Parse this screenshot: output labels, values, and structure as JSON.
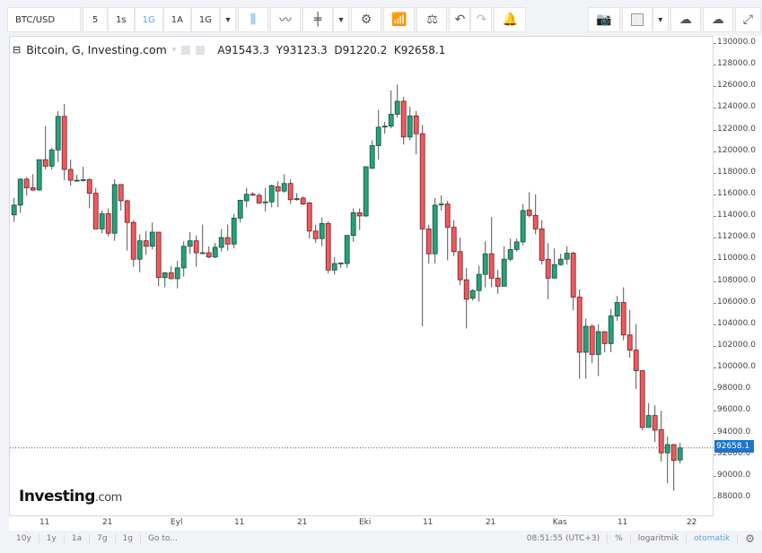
{
  "toolbar": {
    "symbol": "BTC/USD",
    "intervals": [
      {
        "label": "5",
        "active": false
      },
      {
        "label": "1s",
        "active": false
      },
      {
        "label": "1G",
        "active": true
      },
      {
        "label": "1A",
        "active": false
      },
      {
        "label": "1G",
        "active": false
      }
    ],
    "icons": [
      "candlestick-icon",
      "line-chart-icon",
      "bar-style-icon",
      "gear-icon",
      "indicators-icon",
      "compare-icon",
      "undo-icon",
      "redo-icon",
      "add-alert-icon",
      "camera-icon",
      "color-square-icon",
      "cloud-download-icon",
      "cloud-upload-icon",
      "fullscreen-icon"
    ]
  },
  "legend": {
    "title": "Bitcoin, G, Investing.com",
    "ohlc": "A91543.3  Y93123.3  D91220.2  K92658.1"
  },
  "logo": {
    "main": "Investing",
    "suffix": ".com"
  },
  "price_tag": "92658.1",
  "bottom": {
    "ranges": [
      "10y",
      "1y",
      "1a",
      "7g",
      "1g"
    ],
    "goto": "Go to...",
    "time": "08:51:55 (UTC+3)",
    "percent": "%",
    "log": "logaritmik",
    "auto": "otomatik"
  },
  "colors": {
    "up": "#26a17b",
    "down": "#ef5a5f",
    "price_line": "#1f76c6"
  },
  "chart_data": {
    "type": "candlestick",
    "title": "Bitcoin, G, Investing.com",
    "ylim": [
      87000,
      131000
    ],
    "yticks": [
      "130000.0",
      "128000.0",
      "126000.0",
      "124000.0",
      "122000.0",
      "120000.0",
      "118000.0",
      "116000.0",
      "114000.0",
      "112000.0",
      "110000.0",
      "108000.0",
      "106000.0",
      "104000.0",
      "102000.0",
      "100000.0",
      "98000.0",
      "96000.0",
      "94000.0",
      "92000.0",
      "90000.0",
      "88000.0"
    ],
    "xticks": [
      {
        "label": "11",
        "date": "08-11"
      },
      {
        "label": "21",
        "date": "08-21"
      },
      {
        "label": "Eyl",
        "date": "09-01"
      },
      {
        "label": "11",
        "date": "09-11"
      },
      {
        "label": "21",
        "date": "09-21"
      },
      {
        "label": "Eki",
        "date": "10-01"
      },
      {
        "label": "11",
        "date": "10-11"
      },
      {
        "label": "21",
        "date": "10-21"
      },
      {
        "label": "Kas",
        "date": "11-01"
      },
      {
        "label": "11",
        "date": "11-11"
      },
      {
        "label": "22",
        "date": "11-22"
      }
    ],
    "last_price": 92658.1,
    "columns": [
      "date",
      "open",
      "high",
      "low",
      "close"
    ],
    "candles": [
      [
        "08-06",
        114200,
        115750,
        113540,
        115100
      ],
      [
        "08-07",
        115100,
        117600,
        114400,
        117500
      ],
      [
        "08-08",
        117500,
        117700,
        116000,
        116700
      ],
      [
        "08-09",
        116700,
        117960,
        116400,
        116500
      ],
      [
        "08-10",
        116500,
        119300,
        116400,
        119300
      ],
      [
        "08-11",
        119300,
        122400,
        118400,
        118700
      ],
      [
        "08-12",
        118700,
        120400,
        118400,
        120200
      ],
      [
        "08-13",
        120200,
        123800,
        119100,
        123300
      ],
      [
        "08-14",
        123300,
        124450,
        117400,
        118400
      ],
      [
        "08-15",
        118400,
        119300,
        116900,
        117400
      ],
      [
        "08-16",
        117400,
        117900,
        117300,
        117400
      ],
      [
        "08-17",
        117400,
        118650,
        117300,
        117450
      ],
      [
        "08-18",
        117450,
        117600,
        114800,
        116200
      ],
      [
        "08-19",
        116200,
        116700,
        112900,
        112900
      ],
      [
        "08-20",
        112900,
        114600,
        112500,
        114300
      ],
      [
        "08-21",
        114300,
        114800,
        112200,
        112500
      ],
      [
        "08-22",
        112500,
        117500,
        111800,
        117000
      ],
      [
        "08-23",
        117000,
        117000,
        114600,
        115500
      ],
      [
        "08-24",
        115500,
        115600,
        110900,
        113500
      ],
      [
        "08-25",
        113500,
        113700,
        109400,
        110100
      ],
      [
        "08-26",
        110100,
        112400,
        108900,
        111800
      ],
      [
        "08-27",
        111800,
        112700,
        110500,
        111300
      ],
      [
        "08-28",
        111300,
        113500,
        111000,
        112600
      ],
      [
        "08-29",
        112600,
        112600,
        107600,
        108400
      ],
      [
        "08-30",
        108400,
        108900,
        107500,
        108850
      ],
      [
        "08-31",
        108850,
        109450,
        108250,
        108300
      ],
      [
        "09-01",
        108300,
        109950,
        107400,
        109300
      ],
      [
        "09-02",
        109300,
        111750,
        108500,
        111300
      ],
      [
        "09-03",
        111300,
        112600,
        110600,
        111800
      ],
      [
        "09-04",
        111800,
        112300,
        109400,
        110700
      ],
      [
        "09-05",
        110700,
        113300,
        110600,
        110700
      ],
      [
        "09-06",
        110700,
        111300,
        110200,
        110300
      ],
      [
        "09-07",
        110300,
        111600,
        110200,
        111200
      ],
      [
        "09-08",
        111200,
        112900,
        110800,
        112100
      ],
      [
        "09-09",
        112100,
        113300,
        110900,
        111500
      ],
      [
        "09-10",
        111500,
        114300,
        111100,
        113900
      ],
      [
        "09-11",
        113900,
        115550,
        113500,
        115550
      ],
      [
        "09-12",
        115500,
        116700,
        114900,
        116100
      ],
      [
        "09-13",
        116100,
        116300,
        115970,
        116050
      ],
      [
        "09-14",
        116000,
        116200,
        115200,
        115300
      ],
      [
        "09-15",
        115400,
        116700,
        114500,
        115400
      ],
      [
        "09-16",
        115400,
        117000,
        114900,
        116900
      ],
      [
        "09-17",
        116800,
        117300,
        114900,
        116400
      ],
      [
        "09-18",
        116400,
        117960,
        116250,
        117100
      ],
      [
        "09-19",
        117100,
        117500,
        115200,
        115600
      ],
      [
        "09-20",
        115700,
        116200,
        115500,
        115700
      ],
      [
        "09-21",
        115750,
        115900,
        115100,
        115200
      ],
      [
        "09-22",
        115300,
        115400,
        112000,
        112700
      ],
      [
        "09-23",
        112700,
        113300,
        111600,
        112000
      ],
      [
        "09-24",
        112000,
        113950,
        111300,
        113400
      ],
      [
        "09-25",
        113400,
        113600,
        108800,
        109100
      ],
      [
        "09-26",
        109100,
        110300,
        108700,
        109700
      ],
      [
        "09-27",
        109700,
        109800,
        109300,
        109750
      ],
      [
        "09-28",
        109700,
        112300,
        109300,
        112300
      ],
      [
        "09-29",
        112300,
        114800,
        111700,
        114400
      ],
      [
        "09-30",
        114400,
        114800,
        112800,
        114100
      ],
      [
        "10-01",
        114100,
        118700,
        114000,
        118650
      ],
      [
        "10-02",
        118500,
        121100,
        118500,
        120600
      ],
      [
        "10-03",
        120600,
        123900,
        119300,
        122300
      ],
      [
        "10-04",
        122350,
        122800,
        121700,
        122400
      ],
      [
        "10-05",
        122400,
        125700,
        122200,
        123500
      ],
      [
        "10-06",
        123500,
        126250,
        123200,
        124700
      ],
      [
        "10-07",
        124700,
        125100,
        120700,
        121400
      ],
      [
        "10-08",
        121400,
        124200,
        121100,
        123350
      ],
      [
        "10-09",
        123350,
        123800,
        119800,
        121700
      ],
      [
        "10-10",
        121700,
        122500,
        103900,
        112900
      ],
      [
        "10-11",
        112900,
        113300,
        109700,
        110600
      ],
      [
        "10-12",
        110600,
        115750,
        109700,
        115100
      ],
      [
        "10-13",
        115200,
        116000,
        114600,
        115200
      ],
      [
        "10-14",
        115200,
        115500,
        110000,
        113050
      ],
      [
        "10-15",
        113050,
        113700,
        110400,
        110800
      ],
      [
        "10-16",
        110800,
        112100,
        107700,
        108200
      ],
      [
        "10-17",
        108200,
        109300,
        103700,
        106400
      ],
      [
        "10-18",
        106500,
        107330,
        106280,
        107200
      ],
      [
        "10-19",
        107200,
        109500,
        106200,
        108700
      ],
      [
        "10-20",
        108700,
        111750,
        107500,
        110600
      ],
      [
        "10-21",
        110600,
        114000,
        107500,
        108350
      ],
      [
        "10-22",
        108350,
        109100,
        106900,
        107600
      ],
      [
        "10-23",
        107600,
        111300,
        107600,
        110100
      ],
      [
        "10-24",
        110100,
        112000,
        109900,
        111000
      ],
      [
        "10-25",
        111000,
        112000,
        110800,
        111700
      ],
      [
        "10-26",
        111700,
        115200,
        111400,
        114600
      ],
      [
        "10-27",
        114650,
        116300,
        113960,
        114150
      ],
      [
        "10-28",
        114150,
        116100,
        112400,
        112900
      ],
      [
        "10-29",
        112900,
        113700,
        109600,
        110000
      ],
      [
        "10-30",
        110100,
        111600,
        106400,
        108350
      ],
      [
        "10-31",
        108350,
        111100,
        108350,
        109600
      ],
      [
        "11-01",
        109600,
        110600,
        109500,
        110100
      ],
      [
        "11-02",
        110100,
        111300,
        109600,
        110650
      ],
      [
        "11-03",
        110650,
        110800,
        105400,
        106600
      ],
      [
        "11-04",
        106600,
        107300,
        99050,
        101500
      ],
      [
        "11-05",
        101500,
        104600,
        99050,
        103900
      ],
      [
        "11-06",
        103900,
        104100,
        100500,
        101300
      ],
      [
        "11-07",
        101300,
        104100,
        99300,
        103400
      ],
      [
        "11-08",
        103400,
        103400,
        101500,
        102300
      ],
      [
        "11-09",
        102300,
        105500,
        101500,
        104850
      ],
      [
        "11-10",
        104850,
        106700,
        104400,
        106100
      ],
      [
        "11-11",
        106100,
        107500,
        102600,
        103100
      ],
      [
        "11-12",
        103100,
        105400,
        101000,
        101700
      ],
      [
        "11-13",
        101700,
        104100,
        98100,
        99800
      ],
      [
        "11-14",
        99800,
        99800,
        94300,
        94550
      ],
      [
        "11-15",
        94550,
        96800,
        94550,
        95650
      ],
      [
        "11-16",
        95650,
        96600,
        93200,
        94300
      ],
      [
        "11-17",
        94350,
        96100,
        91400,
        92200
      ],
      [
        "11-18",
        92200,
        93700,
        89400,
        92970
      ],
      [
        "11-19",
        92970,
        92970,
        88700,
        91500
      ],
      [
        "11-20",
        91543.3,
        93123.3,
        91220.2,
        92658.1
      ]
    ]
  }
}
